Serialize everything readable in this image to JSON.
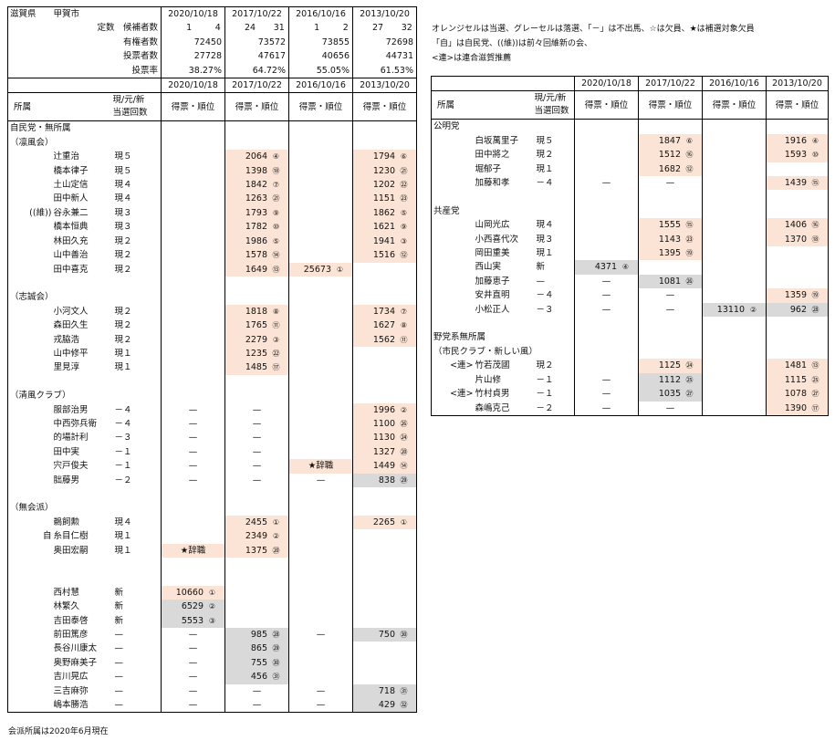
{
  "title": {
    "pref": "滋賀県",
    "city": "甲賀市"
  },
  "years": [
    "2020/10/18",
    "2017/10/22",
    "2016/10/16",
    "2013/10/20"
  ],
  "stats": {
    "ratio_label": "定数　候補者数",
    "ratio": [
      [
        "1",
        "4"
      ],
      [
        "24",
        "31"
      ],
      [
        "1",
        "2"
      ],
      [
        "27",
        "32"
      ]
    ],
    "rows": [
      {
        "label": "有権者数",
        "values": [
          "72450",
          "73572",
          "73855",
          "72698"
        ]
      },
      {
        "label": "投票者数",
        "values": [
          "27728",
          "47617",
          "40656",
          "44731"
        ]
      },
      {
        "label": "投票率",
        "values": [
          "38.27%",
          "64.72%",
          "55.05%",
          "61.53%"
        ]
      }
    ]
  },
  "header": {
    "affil": "所属",
    "current": "現/元/新",
    "count": "当選回数",
    "col": "得票・順位"
  },
  "notes": [
    "オレンジセルは当選、グレーセルは落選、「－」は不出馬、☆は欠員、★は補選対象欠員",
    "「自」は自民党、((維))は前々回維新の会、",
    "<連>は連合滋賀推薦"
  ],
  "footnote": "会派所属は2020年6月現在",
  "left_rows": [
    {
      "g": "自民党・無所属"
    },
    {
      "g": "（凛風会）"
    },
    {
      "n": "辻重治",
      "s": "現５",
      "c": [
        null,
        {
          "v": "2064",
          "r": "④",
          "k": "o"
        },
        null,
        {
          "v": "1794",
          "r": "⑥",
          "k": "o"
        }
      ]
    },
    {
      "n": "橋本律子",
      "s": "現５",
      "c": [
        null,
        {
          "v": "1398",
          "r": "⑱",
          "k": "o"
        },
        null,
        {
          "v": "1230",
          "r": "㉑",
          "k": "o"
        }
      ]
    },
    {
      "n": "土山定信",
      "s": "現４",
      "c": [
        null,
        {
          "v": "1842",
          "r": "⑦",
          "k": "o"
        },
        null,
        {
          "v": "1202",
          "r": "㉒",
          "k": "o"
        }
      ]
    },
    {
      "n": "田中新人",
      "s": "現４",
      "c": [
        null,
        {
          "v": "1263",
          "r": "㉑",
          "k": "o"
        },
        null,
        {
          "v": "1151",
          "r": "㉓",
          "k": "o"
        }
      ]
    },
    {
      "p": "((維))",
      "n": "谷永兼二",
      "s": "現３",
      "c": [
        null,
        {
          "v": "1793",
          "r": "⑨",
          "k": "o"
        },
        null,
        {
          "v": "1862",
          "r": "⑤",
          "k": "o"
        }
      ]
    },
    {
      "n": "橋本恒典",
      "s": "現３",
      "c": [
        null,
        {
          "v": "1782",
          "r": "⑩",
          "k": "o"
        },
        null,
        {
          "v": "1621",
          "r": "⑨",
          "k": "o"
        }
      ]
    },
    {
      "n": "林田久充",
      "s": "現２",
      "c": [
        null,
        {
          "v": "1986",
          "r": "⑤",
          "k": "o"
        },
        null,
        {
          "v": "1941",
          "r": "③",
          "k": "o"
        }
      ]
    },
    {
      "n": "山中善治",
      "s": "現２",
      "c": [
        null,
        {
          "v": "1578",
          "r": "⑭",
          "k": "o"
        },
        null,
        {
          "v": "1516",
          "r": "⑫",
          "k": "o"
        }
      ]
    },
    {
      "n": "田中喜克",
      "s": "現２",
      "c": [
        null,
        {
          "v": "1649",
          "r": "⑬",
          "k": "o"
        },
        {
          "v": "25673",
          "r": "①",
          "k": "o"
        },
        null
      ]
    },
    {
      "blank": true
    },
    {
      "g": "（志誠会）"
    },
    {
      "n": "小河文人",
      "s": "現２",
      "c": [
        null,
        {
          "v": "1818",
          "r": "⑧",
          "k": "o"
        },
        null,
        {
          "v": "1734",
          "r": "⑦",
          "k": "o"
        }
      ]
    },
    {
      "n": "森田久生",
      "s": "現２",
      "c": [
        null,
        {
          "v": "1765",
          "r": "⑪",
          "k": "o"
        },
        null,
        {
          "v": "1627",
          "r": "⑧",
          "k": "o"
        }
      ]
    },
    {
      "n": "戎脇浩",
      "s": "現２",
      "c": [
        null,
        {
          "v": "2279",
          "r": "③",
          "k": "o"
        },
        null,
        {
          "v": "1562",
          "r": "⑪",
          "k": "o"
        }
      ]
    },
    {
      "n": "山中修平",
      "s": "現１",
      "c": [
        null,
        {
          "v": "1235",
          "r": "㉒",
          "k": "o"
        },
        null,
        null
      ]
    },
    {
      "n": "里見淳",
      "s": "現１",
      "c": [
        null,
        {
          "v": "1485",
          "r": "⑰",
          "k": "o"
        },
        null,
        null
      ]
    },
    {
      "blank": true
    },
    {
      "g": "（清風クラブ）"
    },
    {
      "n": "服部治男",
      "s": "－４",
      "c": [
        {
          "d": "—"
        },
        {
          "d": "—"
        },
        null,
        {
          "v": "1996",
          "r": "②",
          "k": "o"
        }
      ]
    },
    {
      "n": "中西弥兵衛",
      "s": "－４",
      "c": [
        {
          "d": "—"
        },
        {
          "d": "—"
        },
        null,
        {
          "v": "1100",
          "r": "㉖",
          "k": "o"
        }
      ]
    },
    {
      "n": "的場計利",
      "s": "－３",
      "c": [
        {
          "d": "—"
        },
        {
          "d": "—"
        },
        null,
        {
          "v": "1130",
          "r": "㉔",
          "k": "o"
        }
      ]
    },
    {
      "n": "田中実",
      "s": "－１",
      "c": [
        {
          "d": "—"
        },
        {
          "d": "—"
        },
        null,
        {
          "v": "1327",
          "r": "⑳",
          "k": "o"
        }
      ]
    },
    {
      "n": "宍戸俊夫",
      "s": "－１",
      "c": [
        {
          "d": "—"
        },
        {
          "d": "—"
        },
        {
          "d": "★辞職",
          "k": "o"
        },
        {
          "v": "1449",
          "r": "⑭",
          "k": "o"
        }
      ]
    },
    {
      "n": "朏藤男",
      "s": "－２",
      "c": [
        {
          "d": "—"
        },
        {
          "d": "—"
        },
        {
          "d": "—"
        },
        {
          "v": "838",
          "r": "㉙",
          "k": "g"
        }
      ]
    },
    {
      "blank": true
    },
    {
      "g": "（無会派）"
    },
    {
      "n": "鵜飼勲",
      "s": "現４",
      "c": [
        null,
        {
          "v": "2455",
          "r": "①",
          "k": "o"
        },
        null,
        {
          "v": "2265",
          "r": "①",
          "k": "o"
        }
      ]
    },
    {
      "p": "自",
      "n": "糸目仁樹",
      "s": "現１",
      "c": [
        null,
        {
          "v": "2349",
          "r": "②",
          "k": "o"
        },
        null,
        null
      ]
    },
    {
      "n": "奥田宏嗣",
      "s": "現１",
      "c": [
        {
          "d": "★辞職",
          "k": "o"
        },
        {
          "v": "1375",
          "r": "⑳",
          "k": "o"
        },
        null,
        null
      ]
    },
    {
      "blank": true
    },
    {
      "blank": true
    },
    {
      "n": "西村慧",
      "s": "新",
      "c": [
        {
          "v": "10660",
          "r": "①",
          "k": "o"
        },
        null,
        null,
        null
      ]
    },
    {
      "n": "林繁久",
      "s": "新",
      "c": [
        {
          "v": "6529",
          "r": "②",
          "k": "g"
        },
        null,
        null,
        null
      ]
    },
    {
      "n": "吉田泰啓",
      "s": "新",
      "c": [
        {
          "v": "5553",
          "r": "③",
          "k": "g"
        },
        null,
        null,
        null
      ]
    },
    {
      "n": "前田篤彦",
      "s": "—",
      "c": [
        {
          "d": "—"
        },
        {
          "v": "985",
          "r": "㉘",
          "k": "g"
        },
        {
          "d": "—"
        },
        {
          "v": "750",
          "r": "㉚",
          "k": "g"
        }
      ]
    },
    {
      "n": "長谷川康太",
      "s": "—",
      "c": [
        {
          "d": "—"
        },
        {
          "v": "865",
          "r": "㉙",
          "k": "g"
        },
        null,
        null
      ]
    },
    {
      "n": "奥野麻美子",
      "s": "—",
      "c": [
        {
          "d": "—"
        },
        {
          "v": "755",
          "r": "㉚",
          "k": "g"
        },
        null,
        null
      ]
    },
    {
      "n": "吉川晃広",
      "s": "—",
      "c": [
        {
          "d": "—"
        },
        {
          "v": "456",
          "r": "㉛",
          "k": "g"
        },
        null,
        null
      ]
    },
    {
      "n": "三吉麻弥",
      "s": "—",
      "c": [
        {
          "d": "—"
        },
        {
          "d": "—"
        },
        {
          "d": "—"
        },
        {
          "v": "718",
          "r": "㉛",
          "k": "g"
        }
      ]
    },
    {
      "n": "嶋本勝浩",
      "s": "—",
      "c": [
        {
          "d": "—"
        },
        {
          "d": "—"
        },
        {
          "d": "—"
        },
        {
          "v": "429",
          "r": "㉜",
          "k": "g"
        }
      ]
    }
  ],
  "right_rows": [
    {
      "g": "公明党"
    },
    {
      "n": "白坂萬里子",
      "s": "現５",
      "c": [
        null,
        {
          "v": "1847",
          "r": "⑥",
          "k": "o"
        },
        null,
        {
          "v": "1916",
          "r": "④",
          "k": "o"
        }
      ]
    },
    {
      "n": "田中將之",
      "s": "現２",
      "c": [
        null,
        {
          "v": "1512",
          "r": "⑯",
          "k": "o"
        },
        null,
        {
          "v": "1593",
          "r": "⑩",
          "k": "o"
        }
      ]
    },
    {
      "n": "堀郁子",
      "s": "現１",
      "c": [
        null,
        {
          "v": "1682",
          "r": "⑫",
          "k": "o"
        },
        null,
        null
      ]
    },
    {
      "n": "加藤和孝",
      "s": "－４",
      "c": [
        {
          "d": "—"
        },
        {
          "d": "—"
        },
        null,
        {
          "v": "1439",
          "r": "⑮",
          "k": "o"
        }
      ]
    },
    {
      "blank": true
    },
    {
      "g": "共産党"
    },
    {
      "n": "山岡光広",
      "s": "現４",
      "c": [
        null,
        {
          "v": "1555",
          "r": "⑮",
          "k": "o"
        },
        null,
        {
          "v": "1406",
          "r": "⑯",
          "k": "o"
        }
      ]
    },
    {
      "n": "小西喜代次",
      "s": "現３",
      "c": [
        null,
        {
          "v": "1143",
          "r": "㉓",
          "k": "o"
        },
        null,
        {
          "v": "1370",
          "r": "⑱",
          "k": "o"
        }
      ]
    },
    {
      "n": "岡田重美",
      "s": "現１",
      "c": [
        null,
        {
          "v": "1395",
          "r": "⑲",
          "k": "o"
        },
        null,
        null
      ]
    },
    {
      "n": "西山実",
      "s": "新",
      "c": [
        {
          "v": "4371",
          "r": "④",
          "k": "g"
        },
        null,
        null,
        null
      ]
    },
    {
      "n": "加藤恵子",
      "s": "—",
      "c": [
        {
          "d": "—"
        },
        {
          "v": "1081",
          "r": "㉖",
          "k": "g"
        },
        null,
        null
      ]
    },
    {
      "n": "安井直明",
      "s": "－４",
      "c": [
        {
          "d": "—"
        },
        {
          "d": "—"
        },
        null,
        {
          "v": "1359",
          "r": "⑲",
          "k": "o"
        }
      ]
    },
    {
      "n": "小松正人",
      "s": "－３",
      "c": [
        {
          "d": "—"
        },
        {
          "d": "—"
        },
        {
          "v": "13110",
          "r": "②",
          "k": "g"
        },
        {
          "v": "962",
          "r": "㉘",
          "k": "g"
        }
      ]
    },
    {
      "blank": true
    },
    {
      "g": "野党系無所属"
    },
    {
      "g": "（市民クラブ・新しい風）"
    },
    {
      "p": "<連>",
      "n": "竹若茂國",
      "s": "現２",
      "c": [
        null,
        {
          "v": "1125",
          "r": "㉔",
          "k": "o"
        },
        null,
        {
          "v": "1481",
          "r": "⑬",
          "k": "o"
        }
      ]
    },
    {
      "n": "片山修",
      "s": "－１",
      "c": [
        {
          "d": "—"
        },
        {
          "v": "1112",
          "r": "㉕",
          "k": "g"
        },
        null,
        {
          "v": "1115",
          "r": "㉕",
          "k": "o"
        }
      ]
    },
    {
      "p": "<連>",
      "n": "竹村貞男",
      "s": "－１",
      "c": [
        {
          "d": "—"
        },
        {
          "v": "1035",
          "r": "㉗",
          "k": "g"
        },
        null,
        {
          "v": "1078",
          "r": "㉗",
          "k": "o"
        }
      ]
    },
    {
      "n": "森嶋克己",
      "s": "－２",
      "c": [
        {
          "d": "—"
        },
        {
          "d": "—"
        },
        null,
        {
          "v": "1390",
          "r": "⑰",
          "k": "o"
        }
      ]
    }
  ]
}
